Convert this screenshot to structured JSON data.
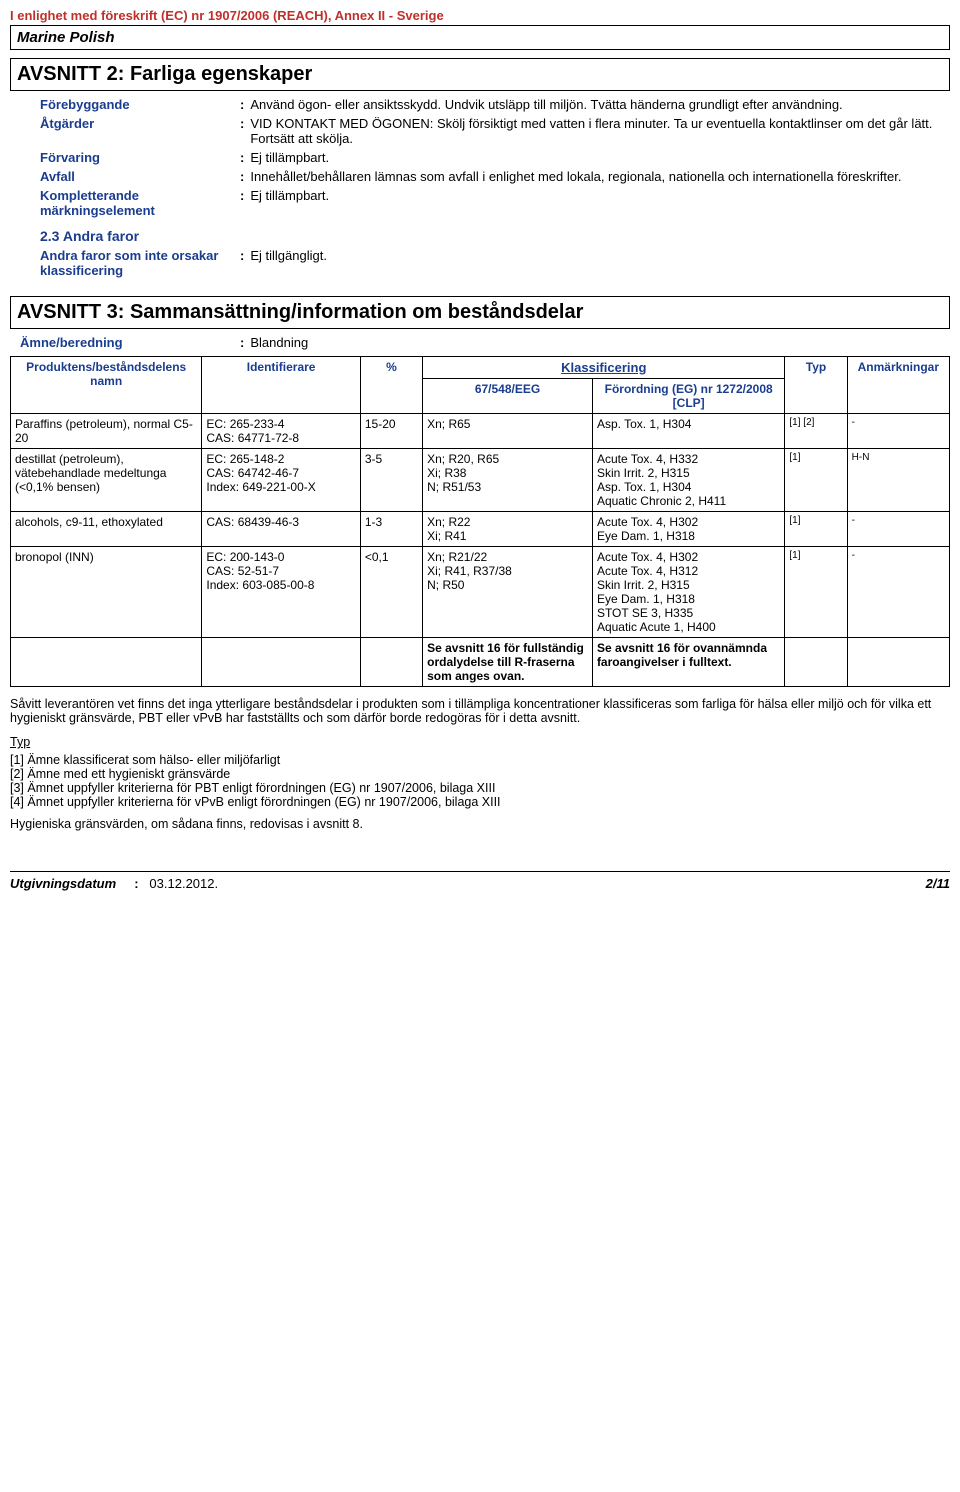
{
  "header_line": "I enlighet med föreskrift (EC) nr 1907/2006 (REACH), Annex II - Sverige",
  "product_name": "Marine Polish",
  "section2": {
    "title": "AVSNITT 2: Farliga egenskaper",
    "fields": [
      {
        "label": "Förebyggande",
        "value": "Använd ögon- eller ansiktsskydd. Undvik utsläpp till miljön. Tvätta händerna grundligt efter användning."
      },
      {
        "label": "Åtgärder",
        "value": "VID KONTAKT MED ÖGONEN: Skölj försiktigt med vatten i flera minuter. Ta ur eventuella kontaktlinser om det går lätt. Fortsätt att skölja."
      },
      {
        "label": "Förvaring",
        "value": "Ej tillämpbart."
      },
      {
        "label": "Avfall",
        "value": "Innehållet/behållaren lämnas som avfall i enlighet med lokala, regionala, nationella och internationella föreskrifter."
      },
      {
        "label": "Kompletterande märkningselement",
        "value": "Ej tillämpbart."
      }
    ],
    "sub23_title": "2.3 Andra faror",
    "sub23_field": {
      "label": "Andra faror som inte orsakar klassificering",
      "value": "Ej tillgängligt."
    }
  },
  "section3": {
    "title": "AVSNITT 3: Sammansättning/information om beståndsdelar",
    "blend_label": "Ämne/beredning",
    "blend_value": "Blandning",
    "klass_header": "Klassificering",
    "table_headers": {
      "col1": "Produktens/beståndsdelens namn",
      "col2": "Identifierare",
      "col3": "%",
      "col4": "67/548/EEG",
      "col5": "Förordning (EG) nr 1272/2008 [CLP]",
      "col6": "Typ",
      "col7": "Anmärkningar"
    },
    "rows": [
      {
        "name": "Paraffins (petroleum), normal C5-20",
        "id": "EC: 265-233-4\nCAS: 64771-72-8",
        "pct": "15-20",
        "eeg": "Xn; R65",
        "clp": "Asp. Tox. 1, H304",
        "typ": "[1] [2]",
        "anm": "-"
      },
      {
        "name": "destillat (petroleum), vätebehandlade medeltunga (<0,1% bensen)",
        "id": "EC: 265-148-2\nCAS: 64742-46-7\nIndex: 649-221-00-X",
        "pct": "3-5",
        "eeg": "Xn; R20, R65\nXi; R38\nN; R51/53",
        "clp": "Acute Tox. 4, H332\nSkin Irrit. 2, H315\nAsp. Tox. 1, H304\nAquatic Chronic 2, H411",
        "typ": "[1]",
        "anm": "H-N"
      },
      {
        "name": "alcohols, c9-11, ethoxylated",
        "id": "CAS: 68439-46-3",
        "pct": "1-3",
        "eeg": "Xn; R22\nXi; R41",
        "clp": "Acute Tox. 4, H302\nEye Dam. 1, H318",
        "typ": "[1]",
        "anm": "-"
      },
      {
        "name": "bronopol (INN)",
        "id": "EC: 200-143-0\nCAS: 52-51-7\nIndex: 603-085-00-8",
        "pct": "<0,1",
        "eeg": "Xn; R21/22\nXi; R41, R37/38\nN; R50",
        "clp": "Acute Tox. 4, H302\nAcute Tox. 4, H312\nSkin Irrit. 2, H315\nEye Dam. 1, H318\nSTOT SE 3, H335\nAquatic Acute 1, H400",
        "typ": "[1]",
        "anm": "-"
      }
    ],
    "footer_row": {
      "eeg": "Se avsnitt 16 för fullständig ordalydelse till R-fraserna som anges ovan.",
      "clp": "Se avsnitt 16 för ovannämnda faroangivelser i fulltext."
    },
    "paragraph": "Såvitt leverantören vet finns det inga ytterligare beståndsdelar i produkten som i tillämpliga koncentrationer klassificeras som farliga för hälsa eller miljö och för vilka ett hygieniskt gränsvärde, PBT eller vPvB har fastställts och som därför borde redogöras för i detta avsnitt.",
    "typ_label": "Typ",
    "typ_lines": [
      "[1] Ämne klassificerat som hälso- eller miljöfarligt",
      "[2] Ämne med ett hygieniskt gränsvärde",
      "[3] Ämnet uppfyller kriterierna för PBT enligt förordningen (EG) nr 1907/2006, bilaga XIII",
      "[4] Ämnet uppfyller kriterierna för vPvB enligt förordningen (EG) nr 1907/2006, bilaga XIII"
    ],
    "hyg_line": "Hygieniska gränsvärden, om sådana finns, redovisas i avsnitt 8."
  },
  "footer": {
    "left_label": "Utgivningsdatum",
    "date": "03.12.2012.",
    "page": "2/11"
  }
}
